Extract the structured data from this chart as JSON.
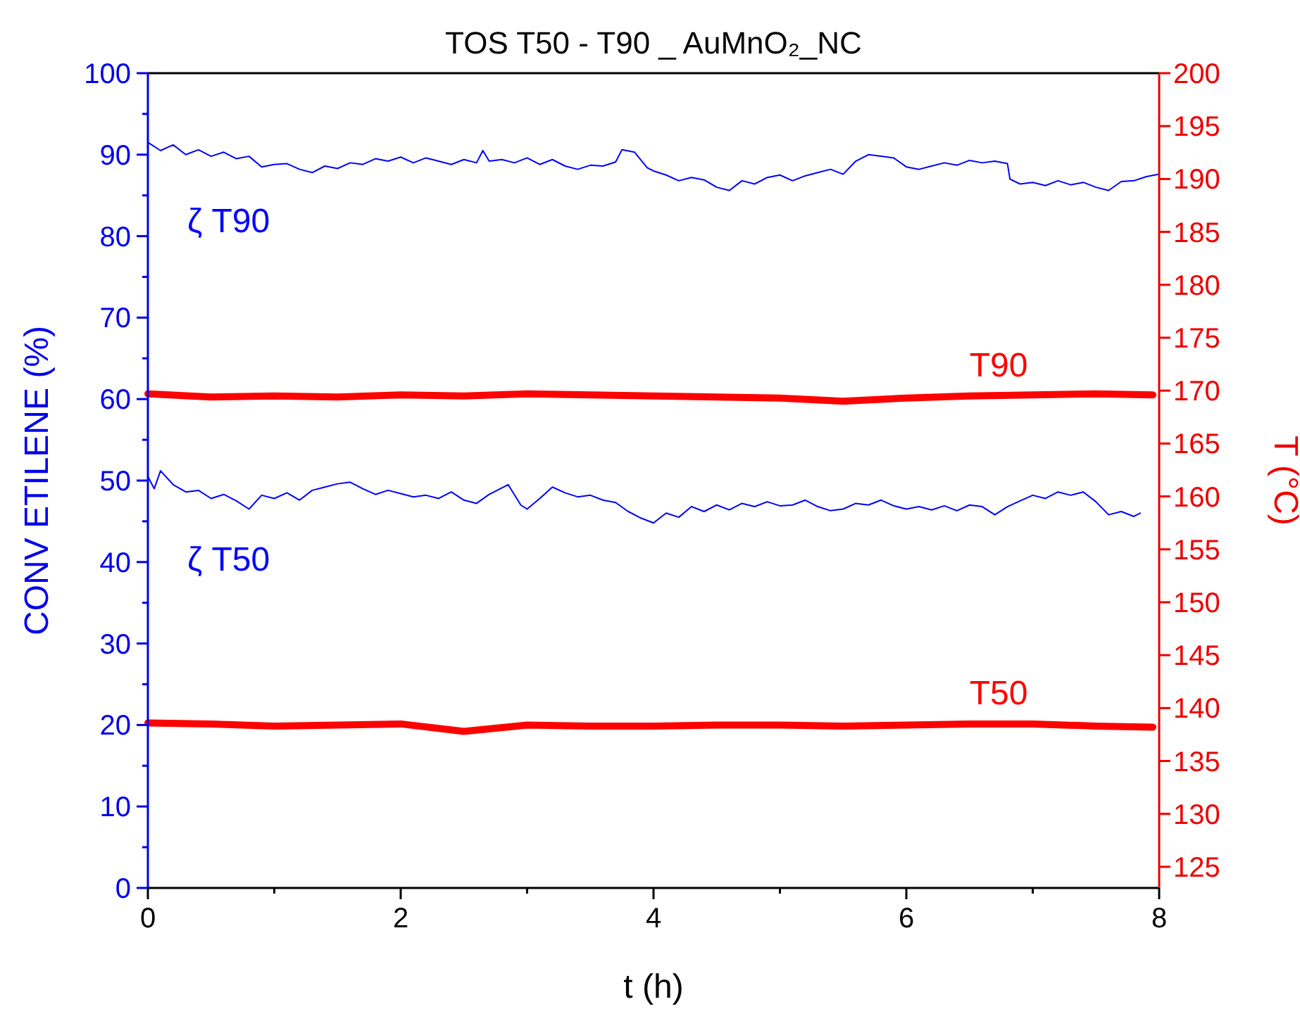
{
  "chart_data": {
    "type": "line",
    "title": "TOS T50 - T90 _ AuMnO₂_NC",
    "xlabel": "t (h)",
    "ylabel": "CONV ETILENE (%)",
    "y2label": "T (°C)",
    "xlim": [
      0,
      8
    ],
    "xticks": [
      0,
      {
        "value": 1,
        "label": null
      },
      2,
      {
        "value": 3,
        "label": null
      },
      4,
      {
        "value": 5,
        "label": null
      },
      6,
      {
        "value": 7,
        "label": null
      },
      8
    ],
    "ylim": [
      0,
      100
    ],
    "yticks": [
      0,
      {
        "value": 5,
        "label": null
      },
      10,
      {
        "value": 15,
        "label": null
      },
      20,
      {
        "value": 25,
        "label": null
      },
      30,
      {
        "value": 35,
        "label": null
      },
      40,
      {
        "value": 45,
        "label": null
      },
      50,
      {
        "value": 55,
        "label": null
      },
      60,
      {
        "value": 65,
        "label": null
      },
      70,
      {
        "value": 75,
        "label": null
      },
      80,
      {
        "value": 85,
        "label": null
      },
      90,
      {
        "value": 95,
        "label": null
      },
      100
    ],
    "y2lim": [
      123,
      200
    ],
    "y2ticks": [
      125,
      130,
      135,
      140,
      145,
      150,
      155,
      160,
      165,
      170,
      175,
      180,
      185,
      190,
      195,
      200
    ],
    "grid": false,
    "marker": "none",
    "line_style": "solid",
    "series": [
      {
        "name": "ζ T90",
        "color": "#0000ff",
        "x": [
          0,
          0.1,
          0.2,
          0.3,
          0.4,
          0.5,
          0.6,
          0.7,
          0.8,
          0.9,
          1.0,
          1.1,
          1.2,
          1.3,
          1.4,
          1.5,
          1.6,
          1.7,
          1.8,
          1.9,
          2.0,
          2.1,
          2.2,
          2.3,
          2.4,
          2.5,
          2.6,
          2.65,
          2.7,
          2.8,
          2.9,
          3.0,
          3.1,
          3.2,
          3.3,
          3.4,
          3.5,
          3.6,
          3.7,
          3.75,
          3.85,
          3.95,
          4.0,
          4.1,
          4.2,
          4.3,
          4.4,
          4.5,
          4.6,
          4.7,
          4.8,
          4.9,
          5.0,
          5.1,
          5.2,
          5.3,
          5.4,
          5.5,
          5.6,
          5.7,
          5.8,
          5.9,
          6.0,
          6.1,
          6.2,
          6.3,
          6.4,
          6.5,
          6.6,
          6.7,
          6.8,
          6.82,
          6.9,
          7.0,
          7.1,
          7.2,
          7.3,
          7.4,
          7.5,
          7.6,
          7.7,
          7.8,
          7.9,
          8.0
        ],
        "values": [
          91.5,
          90.5,
          91.2,
          90.0,
          90.6,
          89.8,
          90.3,
          89.5,
          89.8,
          88.5,
          88.8,
          88.9,
          88.2,
          87.8,
          88.6,
          88.3,
          89.0,
          88.8,
          89.5,
          89.2,
          89.7,
          89.0,
          89.6,
          89.2,
          88.8,
          89.4,
          89.0,
          90.5,
          89.2,
          89.4,
          89.0,
          89.6,
          88.8,
          89.4,
          88.6,
          88.2,
          88.7,
          88.6,
          89.1,
          90.6,
          90.3,
          88.4,
          88.0,
          87.5,
          86.8,
          87.2,
          86.9,
          86.0,
          85.6,
          86.8,
          86.4,
          87.2,
          87.5,
          86.8,
          87.4,
          87.8,
          88.2,
          87.6,
          89.2,
          90.0,
          89.8,
          89.6,
          88.5,
          88.2,
          88.6,
          89.0,
          88.7,
          89.3,
          89.0,
          89.2,
          88.9,
          87.0,
          86.4,
          86.6,
          86.2,
          86.8,
          86.3,
          86.6,
          86.0,
          85.6,
          86.7,
          86.8,
          87.3,
          87.6
        ]
      },
      {
        "name": "ζ T50",
        "color": "#0000ff",
        "x": [
          0,
          0.05,
          0.1,
          0.2,
          0.3,
          0.4,
          0.5,
          0.6,
          0.7,
          0.8,
          0.9,
          1.0,
          1.1,
          1.2,
          1.3,
          1.4,
          1.5,
          1.6,
          1.7,
          1.8,
          1.9,
          2.0,
          2.1,
          2.2,
          2.3,
          2.4,
          2.5,
          2.6,
          2.7,
          2.85,
          2.95,
          3.0,
          3.1,
          3.2,
          3.3,
          3.4,
          3.5,
          3.6,
          3.7,
          3.8,
          3.9,
          4.0,
          4.1,
          4.2,
          4.3,
          4.4,
          4.5,
          4.6,
          4.7,
          4.8,
          4.9,
          5.0,
          5.1,
          5.2,
          5.3,
          5.4,
          5.5,
          5.6,
          5.7,
          5.8,
          5.9,
          6.0,
          6.1,
          6.2,
          6.3,
          6.4,
          6.5,
          6.6,
          6.7,
          6.8,
          6.9,
          7.0,
          7.1,
          7.2,
          7.3,
          7.4,
          7.5,
          7.6,
          7.7,
          7.8,
          7.85
        ],
        "values": [
          50.5,
          49.0,
          51.2,
          49.5,
          48.6,
          48.8,
          47.8,
          48.3,
          47.5,
          46.5,
          48.2,
          47.8,
          48.5,
          47.6,
          48.8,
          49.2,
          49.6,
          49.8,
          49.0,
          48.3,
          48.8,
          48.4,
          48.0,
          48.2,
          47.8,
          48.6,
          47.6,
          47.2,
          48.3,
          49.5,
          47.0,
          46.5,
          47.8,
          49.2,
          48.5,
          48.0,
          48.2,
          47.6,
          47.3,
          46.2,
          45.4,
          44.8,
          46.0,
          45.5,
          46.8,
          46.2,
          47.0,
          46.4,
          47.2,
          46.8,
          47.4,
          46.9,
          47.0,
          47.6,
          46.8,
          46.3,
          46.5,
          47.2,
          47.0,
          47.6,
          46.9,
          46.5,
          46.8,
          46.4,
          46.9,
          46.3,
          47.0,
          46.8,
          45.8,
          46.8,
          47.5,
          48.2,
          47.8,
          48.6,
          48.2,
          48.6,
          47.4,
          45.8,
          46.2,
          45.6,
          46.0
        ]
      },
      {
        "name": "T90",
        "color": "#ff0000",
        "axis": "y2",
        "x": [
          0,
          0.5,
          1.0,
          1.5,
          2.0,
          2.5,
          3.0,
          3.5,
          4.0,
          4.5,
          5.0,
          5.5,
          6.0,
          6.5,
          7.0,
          7.5,
          7.95
        ],
        "values": [
          169.7,
          169.4,
          169.5,
          169.4,
          169.6,
          169.5,
          169.7,
          169.6,
          169.5,
          169.4,
          169.3,
          169.0,
          169.3,
          169.5,
          169.6,
          169.7,
          169.6
        ]
      },
      {
        "name": "T50",
        "color": "#ff0000",
        "axis": "y2",
        "x": [
          0,
          0.5,
          1.0,
          1.5,
          2.0,
          2.5,
          3.0,
          3.5,
          4.0,
          4.5,
          5.0,
          5.5,
          6.0,
          6.5,
          7.0,
          7.5,
          7.95
        ],
        "values": [
          138.6,
          138.5,
          138.3,
          138.4,
          138.5,
          137.8,
          138.4,
          138.3,
          138.3,
          138.4,
          138.4,
          138.3,
          138.4,
          138.5,
          138.5,
          138.3,
          138.2
        ]
      }
    ]
  }
}
